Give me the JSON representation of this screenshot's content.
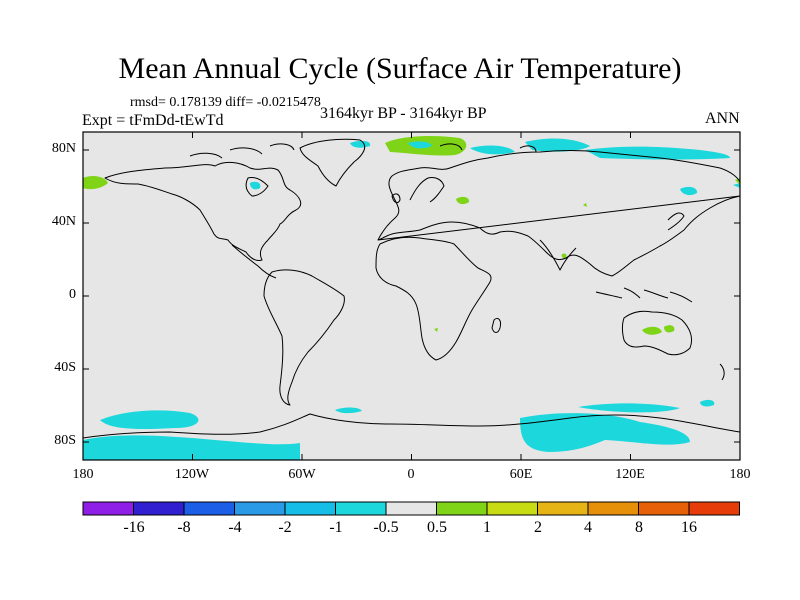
{
  "title": "Mean Annual Cycle (Surface Air Temperature)",
  "stats": "rmsd= 0.178139 diff= -0.0215478",
  "experiment": "Expt = tFmDd-tEwTd",
  "period": "3164kyr BP - 3164kyr BP",
  "season": "ANN",
  "map": {
    "background_color": "#e6e6e6",
    "lat_labels": [
      "80N",
      "40N",
      "0",
      "40S",
      "80S"
    ],
    "lon_labels": [
      "180",
      "120W",
      "60W",
      "0",
      "60E",
      "120E",
      "180"
    ]
  },
  "colorbar": {
    "colors": [
      "#8f1fe6",
      "#3020d0",
      "#1c5ee6",
      "#2a9ae6",
      "#16bde6",
      "#1cd8dc",
      "#e6e6e6",
      "#7fd418",
      "#c8dc14",
      "#e6b414",
      "#e6900a",
      "#e6600a",
      "#e63c0a"
    ],
    "labels": [
      "-16",
      "-8",
      "-4",
      "-2",
      "-1",
      "-0.5",
      "0.5",
      "1",
      "2",
      "4",
      "8",
      "16"
    ]
  }
}
